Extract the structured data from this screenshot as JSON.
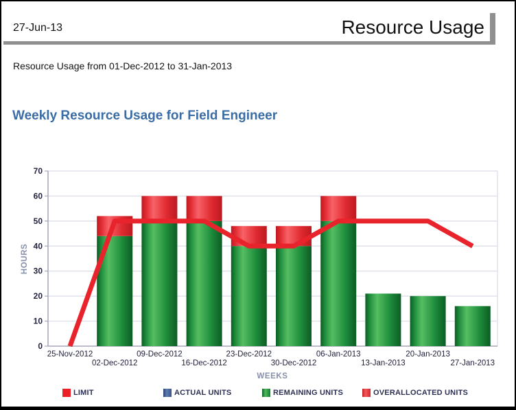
{
  "page": {
    "report_date": "27-Jun-13",
    "report_title": "Resource Usage",
    "subtitle": "Resource Usage from 01-Dec-2012 to 31-Jan-2013",
    "chart_heading": "Weekly Resource Usage for Field Engineer"
  },
  "colors": {
    "header_rule": "#8F8F8F",
    "heading_blue": "#3A6CA5",
    "axis_text": "#23233F",
    "axis_title_muted": "#8790AC",
    "gridline": "#DADBE6",
    "axis_line": "#A3A6BB",
    "limit_red": "#E8232B",
    "actual_blue": "#3D5C99",
    "remaining_green": "#2FA14B",
    "overallocated_red": "#E8232B"
  },
  "chart_data": {
    "type": "bar",
    "title": "Weekly Resource Usage for Field Engineer",
    "xlabel": "WEEKS",
    "ylabel": "HOURS",
    "ylim": [
      0,
      70
    ],
    "ytick_step": 10,
    "grid": true,
    "legend_position": "bottom",
    "categories": [
      "25-Nov-2012",
      "02-Dec-2012",
      "09-Dec-2012",
      "16-Dec-2012",
      "23-Dec-2012",
      "30-Dec-2012",
      "06-Jan-2013",
      "13-Jan-2013",
      "20-Jan-2013",
      "27-Jan-2013"
    ],
    "series": [
      {
        "name": "LIMIT",
        "type": "line",
        "color": "#E8232B",
        "values": [
          0,
          50,
          50,
          50,
          40,
          40,
          50,
          50,
          50,
          40
        ]
      },
      {
        "name": "ACTUAL UNITS",
        "type": "bar",
        "color": "#3D5C99",
        "values": [
          0,
          0,
          0,
          0,
          0,
          0,
          0,
          0,
          0,
          0
        ]
      },
      {
        "name": "REMAINING UNITS",
        "type": "bar",
        "color": "#2FA14B",
        "values": [
          0,
          44,
          50,
          50,
          40,
          40,
          50,
          21,
          20,
          16
        ]
      },
      {
        "name": "OVERALLOCATED UNITS",
        "type": "bar",
        "color": "#E8232B",
        "values": [
          0,
          8,
          10,
          10,
          8,
          8,
          10,
          0,
          0,
          0
        ]
      }
    ]
  }
}
